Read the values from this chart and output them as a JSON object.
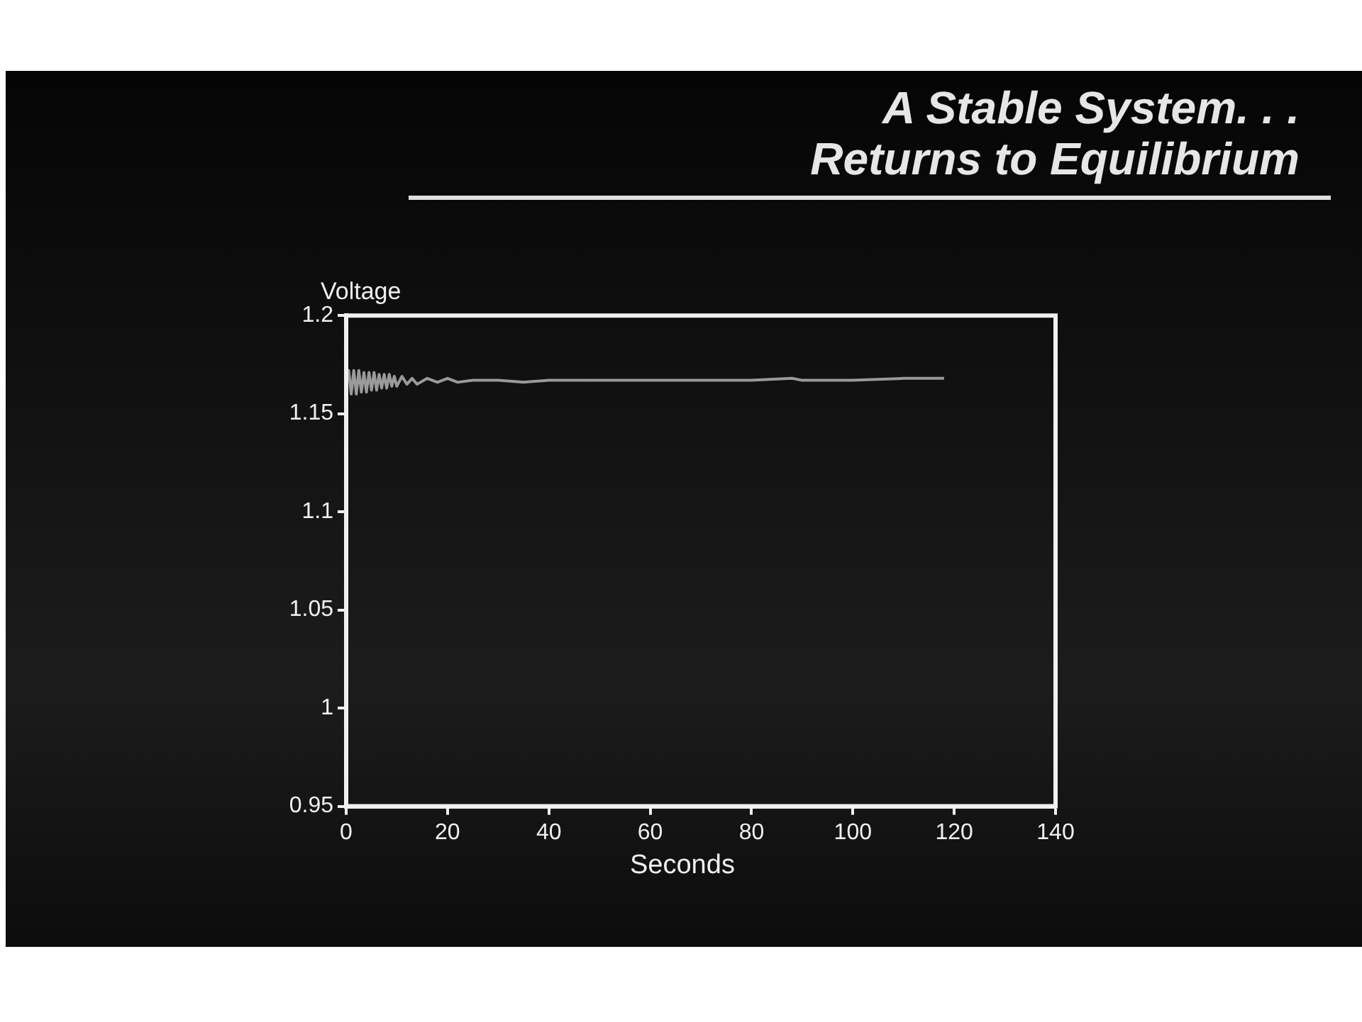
{
  "chart_data": {
    "type": "line",
    "title": "A Stable System. . .\nReturns to Equilibrium",
    "xlabel": "Seconds",
    "ylabel": "Voltage",
    "x": [
      0,
      0.5,
      1,
      1.5,
      2,
      2.5,
      3,
      3.5,
      4,
      4.5,
      5,
      5.5,
      6,
      6.5,
      7,
      7.5,
      8,
      8.5,
      9,
      9.5,
      10,
      11,
      12,
      13,
      14,
      16,
      18,
      20,
      22,
      25,
      30,
      35,
      40,
      50,
      60,
      70,
      80,
      88,
      90,
      100,
      110,
      115,
      118
    ],
    "series": [
      {
        "color": "#9a9a9a",
        "values": [
          1.166,
          1.172,
          1.16,
          1.172,
          1.16,
          1.172,
          1.161,
          1.171,
          1.161,
          1.171,
          1.162,
          1.171,
          1.162,
          1.17,
          1.163,
          1.17,
          1.163,
          1.17,
          1.164,
          1.169,
          1.164,
          1.169,
          1.165,
          1.168,
          1.165,
          1.168,
          1.166,
          1.168,
          1.166,
          1.167,
          1.167,
          1.166,
          1.167,
          1.167,
          1.167,
          1.167,
          1.167,
          1.168,
          1.167,
          1.167,
          1.168,
          1.168,
          1.168
        ]
      }
    ],
    "xlim": [
      0,
      140
    ],
    "xticks": [
      0,
      20,
      40,
      60,
      80,
      100,
      120,
      140
    ],
    "ylim": [
      0.95,
      1.2
    ],
    "yticks": [
      0.95,
      1,
      1.05,
      1.1,
      1.15,
      1.2
    ],
    "grid": false,
    "legend": false,
    "marker": "none",
    "line_style": "solid"
  }
}
